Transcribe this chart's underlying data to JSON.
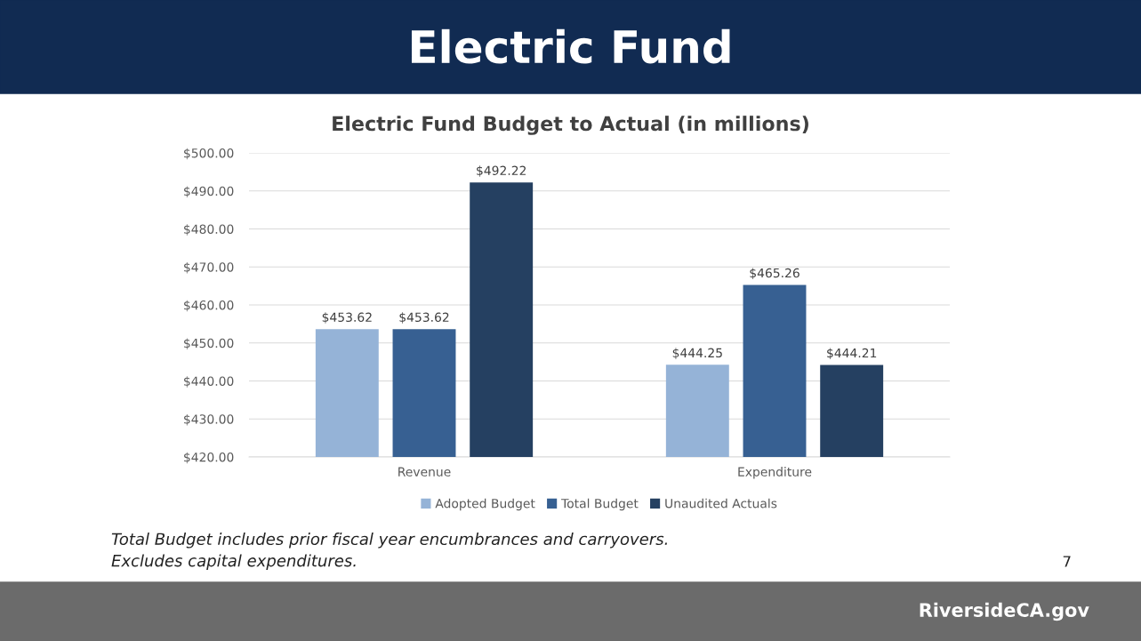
{
  "chart_data": {
    "type": "bar",
    "title": "Electric Fund",
    "subtitle": "Electric Fund Budget to Actual (in millions)",
    "categories": [
      "Revenue",
      "Expenditure"
    ],
    "series": [
      {
        "name": "Adopted Budget",
        "color": "#95b3d7",
        "values": [
          453.62,
          444.25
        ],
        "value_labels": [
          "$453.62",
          "$444.25"
        ]
      },
      {
        "name": "Total Budget",
        "color": "#376092",
        "values": [
          453.62,
          465.26
        ],
        "value_labels": [
          "$453.62",
          "$465.26"
        ]
      },
      {
        "name": "Unaudited Actuals",
        "color": "#254061",
        "values": [
          492.22,
          444.21
        ],
        "value_labels": [
          "$492.22",
          "$444.21"
        ]
      }
    ],
    "ylim": [
      420,
      500
    ],
    "yticks": [
      {
        "value": 420,
        "label": "$420.00"
      },
      {
        "value": 430,
        "label": "$430.00"
      },
      {
        "value": 440,
        "label": "$440.00"
      },
      {
        "value": 450,
        "label": "$450.00"
      },
      {
        "value": 460,
        "label": "$460.00"
      },
      {
        "value": 470,
        "label": "$470.00"
      },
      {
        "value": 480,
        "label": "$480.00"
      },
      {
        "value": 490,
        "label": "$490.00"
      },
      {
        "value": 500,
        "label": "$500.00"
      }
    ],
    "grid": "y",
    "legend": "bottom",
    "annotations": [
      "Total Budget includes prior fiscal year encumbrances and carryovers.\nExcludes capital expenditures.",
      "7",
      "RiversideCA.gov"
    ]
  }
}
